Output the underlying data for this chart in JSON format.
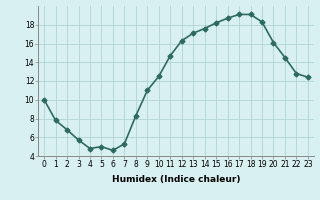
{
  "x": [
    0,
    1,
    2,
    3,
    4,
    5,
    6,
    7,
    8,
    9,
    10,
    11,
    12,
    13,
    14,
    15,
    16,
    17,
    18,
    19,
    20,
    21,
    22,
    23
  ],
  "y": [
    10,
    7.8,
    6.8,
    5.7,
    4.8,
    5.0,
    4.6,
    5.3,
    8.3,
    11.0,
    12.5,
    14.7,
    16.3,
    17.1,
    17.6,
    18.2,
    18.7,
    19.1,
    19.1,
    18.3,
    16.1,
    14.5,
    12.8,
    12.4
  ],
  "line_color": "#2d6b5e",
  "marker": "D",
  "marker_size": 2.5,
  "line_width": 1.2,
  "bg_color": "#d8f0f0",
  "grid_color": "#b0d4d4",
  "xlabel": "Humidex (Indice chaleur)",
  "xlim": [
    -0.5,
    23.5
  ],
  "ylim": [
    4,
    20
  ],
  "yticks": [
    4,
    6,
    8,
    10,
    12,
    14,
    16,
    18
  ],
  "xticks": [
    0,
    1,
    2,
    3,
    4,
    5,
    6,
    7,
    8,
    9,
    10,
    11,
    12,
    13,
    14,
    15,
    16,
    17,
    18,
    19,
    20,
    21,
    22,
    23
  ],
  "xtick_labels": [
    "0",
    "1",
    "2",
    "3",
    "4",
    "5",
    "6",
    "7",
    "8",
    "9",
    "10",
    "11",
    "12",
    "13",
    "14",
    "15",
    "16",
    "17",
    "18",
    "19",
    "20",
    "21",
    "22",
    "23"
  ],
  "tick_fontsize": 5.5,
  "xlabel_fontsize": 6.5,
  "title": ""
}
